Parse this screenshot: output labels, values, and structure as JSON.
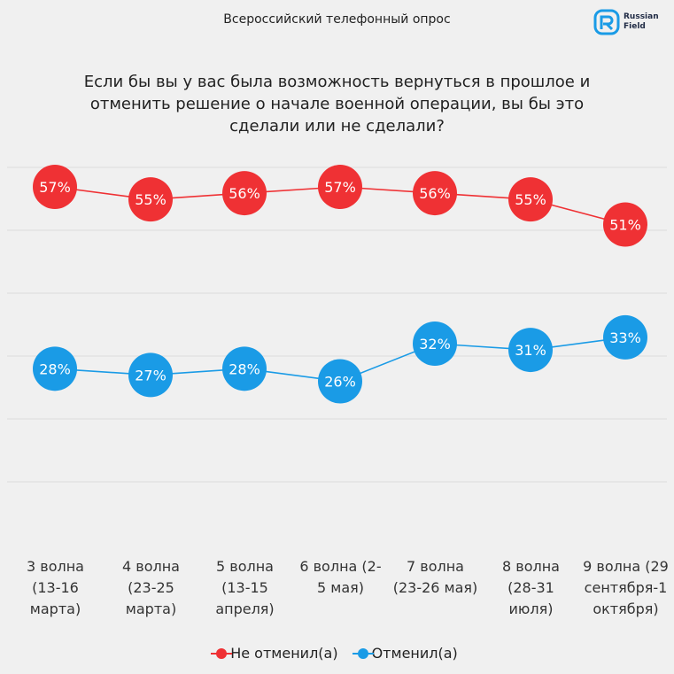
{
  "header": {
    "title": "Всероссийский телефонный опрос"
  },
  "logo": {
    "text_line1": "Russian",
    "text_line2": "Field"
  },
  "chart_data": {
    "type": "line",
    "title": "Если бы вы у вас была возможность вернуться в прошлое и отменить решение о начале военной операции, вы бы это сделали или не сделали?",
    "categories": [
      "3 волна (13-16 марта)",
      "4 волна (23-25 марта)",
      "5 волна (13-15 апреля)",
      "6 волна (2-5 мая)",
      "7 волна (23-26 мая)",
      "8 волна (28-31 июля)",
      "9 волна (29 сентября-1 октября)"
    ],
    "category_lines": [
      [
        "3 волна",
        "(13-16",
        "марта)"
      ],
      [
        "4 волна",
        "(23-25",
        "марта)"
      ],
      [
        "5 волна",
        "(13-15",
        "апреля)"
      ],
      [
        "6 волна (2-",
        "5 мая)"
      ],
      [
        "7 волна",
        "(23-26 мая)"
      ],
      [
        "8 волна",
        "(28-31",
        "июля)"
      ],
      [
        "9 волна (29",
        "сентября-1",
        "октября)"
      ]
    ],
    "series": [
      {
        "name": "Не отменил(а)",
        "color": "#ef3134",
        "values": [
          57,
          55,
          56,
          57,
          56,
          55,
          51
        ]
      },
      {
        "name": "Отменил(а)",
        "color": "#1a9be6",
        "values": [
          28,
          27,
          28,
          26,
          32,
          31,
          33
        ]
      }
    ],
    "value_suffix": "%",
    "legend_position": "bottom",
    "grid": true
  }
}
